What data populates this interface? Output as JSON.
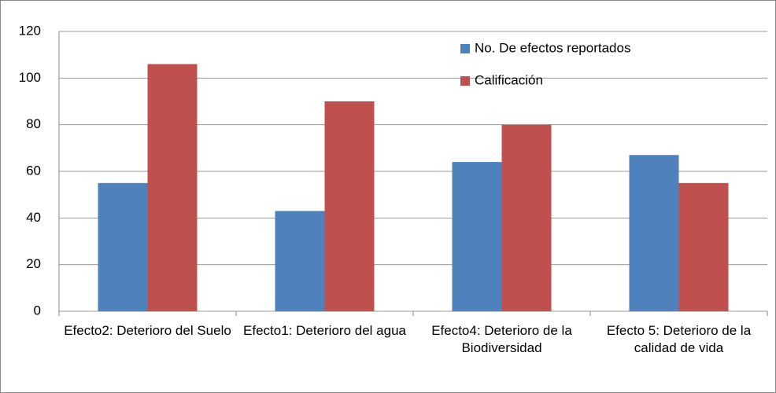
{
  "chart_data": {
    "type": "bar",
    "categories": [
      "Efecto2: Deterioro del Suelo",
      "Efecto1: Deterioro del agua",
      "Efecto4: Deterioro de la Biodiversidad",
      "Efecto 5: Deterioro de la calidad  de vida"
    ],
    "series": [
      {
        "name": "No. De efectos reportados",
        "color": "#4f81bd",
        "values": [
          55,
          43,
          64,
          67
        ]
      },
      {
        "name": "Calificación",
        "color": "#c0504d",
        "values": [
          106,
          90,
          80,
          55
        ]
      }
    ],
    "ylim": [
      0,
      120
    ],
    "yticks": [
      0,
      20,
      40,
      60,
      80,
      100,
      120
    ],
    "grid": true,
    "legend": "top-right"
  }
}
